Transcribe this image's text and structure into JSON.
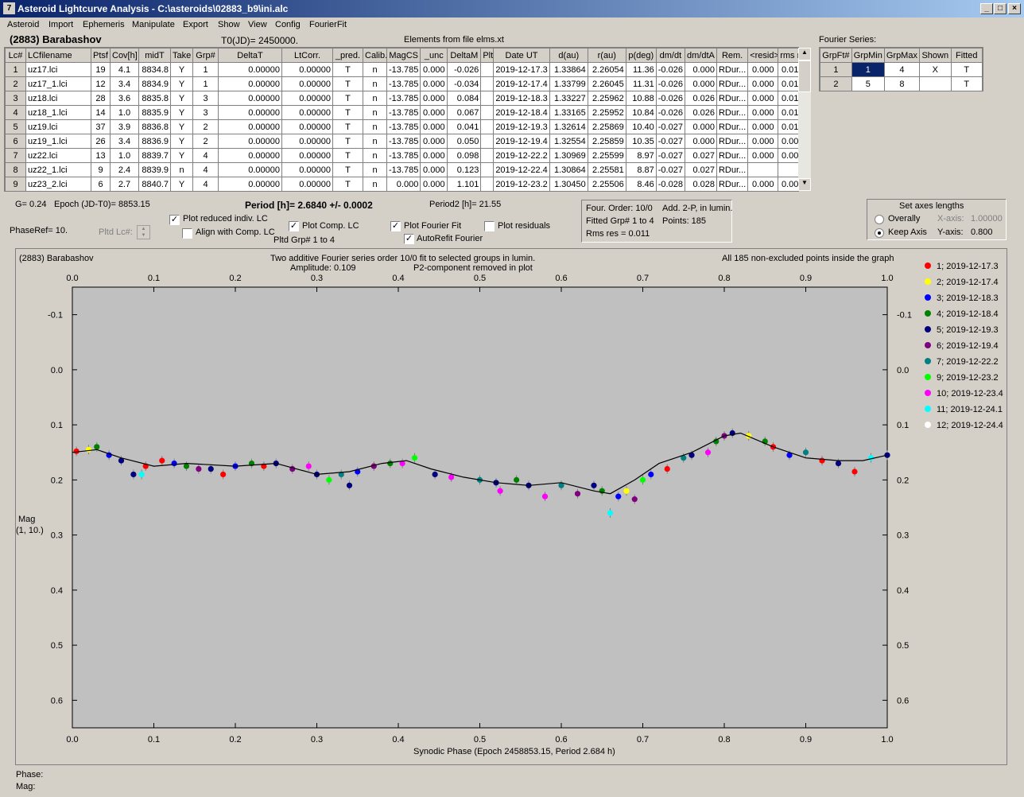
{
  "window": {
    "title": "Asteroid Lightcurve Analysis - C:\\asteroids\\02883_b9\\ini.alc"
  },
  "menu": [
    "Asteroid",
    "Import",
    "Ephemeris",
    "Manipulate",
    "Export",
    "Show",
    "View",
    "Config",
    "FourierFit"
  ],
  "header": {
    "asteroid": "(2883) Barabashov",
    "t0": "T0(JD)= 2450000.",
    "elements": "Elements from file elms.xt",
    "fourier_label": "Fourier Series:"
  },
  "lc_table": {
    "columns": [
      "Lc#",
      "LCfilename",
      "Ptsf",
      "Cov[h]",
      "midT",
      "Take",
      "Grp#",
      "DeltaT",
      "LtCorr.",
      "_pred.",
      "Calib.",
      "MagCS",
      "_unc",
      "DeltaM",
      "Plt",
      "Date UT",
      "d(au)",
      "r(au)",
      "p(deg)",
      "dm/dt",
      "dm/dtA",
      "Rem.",
      "<resid>",
      "rms res"
    ],
    "rows": [
      [
        "1",
        "uz17.lci",
        "19",
        "4.1",
        "8834.8",
        "Y",
        "1",
        "0.00000",
        "0.00000",
        "T",
        "n",
        "-13.785",
        "0.000",
        "-0.026",
        "",
        "2019-12-17.3",
        "1.33864",
        "2.26054",
        "11.36",
        "-0.026",
        "0.000",
        "RDur...",
        "0.000",
        "0.010"
      ],
      [
        "2",
        "uz17_1.lci",
        "12",
        "3.4",
        "8834.9",
        "Y",
        "1",
        "0.00000",
        "0.00000",
        "T",
        "n",
        "-13.785",
        "0.000",
        "-0.034",
        "",
        "2019-12-17.4",
        "1.33799",
        "2.26045",
        "11.31",
        "-0.026",
        "0.000",
        "RDur...",
        "0.000",
        "0.010"
      ],
      [
        "3",
        "uz18.lci",
        "28",
        "3.6",
        "8835.8",
        "Y",
        "3",
        "0.00000",
        "0.00000",
        "T",
        "n",
        "-13.785",
        "0.000",
        "0.084",
        "",
        "2019-12-18.3",
        "1.33227",
        "2.25962",
        "10.88",
        "-0.026",
        "0.026",
        "RDur...",
        "0.000",
        "0.010"
      ],
      [
        "4",
        "uz18_1.lci",
        "14",
        "1.0",
        "8835.9",
        "Y",
        "3",
        "0.00000",
        "0.00000",
        "T",
        "n",
        "-13.785",
        "0.000",
        "0.067",
        "",
        "2019-12-18.4",
        "1.33165",
        "2.25952",
        "10.84",
        "-0.026",
        "0.026",
        "RDur...",
        "0.000",
        "0.010"
      ],
      [
        "5",
        "uz19.lci",
        "37",
        "3.9",
        "8836.8",
        "Y",
        "2",
        "0.00000",
        "0.00000",
        "T",
        "n",
        "-13.785",
        "0.000",
        "0.041",
        "",
        "2019-12-19.3",
        "1.32614",
        "2.25869",
        "10.40",
        "-0.027",
        "0.000",
        "RDur...",
        "0.000",
        "0.012"
      ],
      [
        "6",
        "uz19_1.lci",
        "26",
        "3.4",
        "8836.9",
        "Y",
        "2",
        "0.00000",
        "0.00000",
        "T",
        "n",
        "-13.785",
        "0.000",
        "0.050",
        "",
        "2019-12-19.4",
        "1.32554",
        "2.25859",
        "10.35",
        "-0.027",
        "0.000",
        "RDur...",
        "0.000",
        "0.008"
      ],
      [
        "7",
        "uz22.lci",
        "13",
        "1.0",
        "8839.7",
        "Y",
        "4",
        "0.00000",
        "0.00000",
        "T",
        "n",
        "-13.785",
        "0.000",
        "0.098",
        "",
        "2019-12-22.2",
        "1.30969",
        "2.25599",
        "8.97",
        "-0.027",
        "0.027",
        "RDur...",
        "0.000",
        "0.008"
      ],
      [
        "8",
        "uz22_1.lci",
        "9",
        "2.4",
        "8839.9",
        "n",
        "4",
        "0.00000",
        "0.00000",
        "T",
        "n",
        "-13.785",
        "0.000",
        "0.123",
        "",
        "2019-12-22.4",
        "1.30864",
        "2.25581",
        "8.87",
        "-0.027",
        "0.027",
        "RDur...",
        "",
        ""
      ],
      [
        "9",
        "uz23_2.lci",
        "6",
        "2.7",
        "8840.7",
        "Y",
        "4",
        "0.00000",
        "0.00000",
        "T",
        "n",
        "0.000",
        "0.000",
        "1.101",
        "",
        "2019-12-23.2",
        "1.30450",
        "2.25506",
        "8.46",
        "-0.028",
        "0.028",
        "RDur...",
        "0.000",
        "0.006"
      ]
    ]
  },
  "fourier_table": {
    "columns": [
      "GrpFt#",
      "GrpMin",
      "GrpMax",
      "Shown",
      "Fitted"
    ],
    "rows": [
      [
        "1",
        "1",
        "4",
        "X",
        "T"
      ],
      [
        "2",
        "5",
        "8",
        "",
        "T"
      ]
    ]
  },
  "controls": {
    "g": "G= 0.24",
    "epoch": "Epoch (JD-T0)= 8853.15",
    "period": "Period [h]= 2.6840 +/- 0.0002",
    "period2": "Period2 [h]= 21.55",
    "phaseref": "PhaseRef= 10.",
    "pltd_lc": "Pltd Lc#:",
    "cb_reduced": "Plot reduced indiv. LC",
    "cb_align": "Align with Comp. LC",
    "cb_comp": "Plot Comp. LC",
    "pltd_grp": "Pltd Grp#  1   to   4",
    "cb_fourier": "Plot Fourier Fit",
    "cb_resid": "Plot residuals",
    "cb_autorefit": "AutoRefit Fourier",
    "info1": "Four. Order: 10/0",
    "info2": "Add. 2-P, in lumin.",
    "info3": "Fitted Grp# 1 to 4",
    "info4": "Points: 185",
    "info5": "Rms res      = 0.011",
    "axes_title": "Set axes lengths",
    "overally": "Overally",
    "keep_axis": "Keep Axis",
    "xaxis_label": "X-axis:",
    "xaxis_val": "1.00000",
    "yaxis_label": "Y-axis:",
    "yaxis_val": "0.800"
  },
  "plot": {
    "t_left": "(2883) Barabashov",
    "t_center1": "Two additive Fourier series order 10/0 fit to selected groups in lumin.",
    "t_center2a": "Amplitude: 0.109",
    "t_center2b": "P2-component removed in plot",
    "t_right": "All 185 non-excluded points inside the graph",
    "ylabel1": "Mag",
    "ylabel2": "(1, 10.)",
    "xlabel": "Synodic Phase (Epoch 2458853.15, Period 2.684 h)"
  },
  "footer": {
    "phase": "Phase:",
    "mag": "Mag:"
  },
  "chart_data": {
    "type": "scatter",
    "xlim": [
      0,
      1
    ],
    "ylim": [
      0.65,
      -0.15
    ],
    "y_inverted": true,
    "xticks": [
      "0.0",
      "0.1",
      "0.2",
      "0.3",
      "0.4",
      "0.5",
      "0.6",
      "0.7",
      "0.8",
      "0.9",
      "1.0"
    ],
    "yticks": [
      "-0.1",
      "0.0",
      "0.1",
      "0.2",
      "0.3",
      "0.4",
      "0.5",
      "0.6"
    ],
    "legend": [
      {
        "name": "1; 2019-12-17.3",
        "color": "#ff0000"
      },
      {
        "name": "2; 2019-12-17.4",
        "color": "#ffff00"
      },
      {
        "name": "3; 2019-12-18.3",
        "color": "#0000ff"
      },
      {
        "name": "4; 2019-12-18.4",
        "color": "#008000"
      },
      {
        "name": "5; 2019-12-19.3",
        "color": "#000080"
      },
      {
        "name": "6; 2019-12-19.4",
        "color": "#800080"
      },
      {
        "name": "7; 2019-12-22.2",
        "color": "#008080"
      },
      {
        "name": "9; 2019-12-23.2",
        "color": "#00ff00"
      },
      {
        "name": "10; 2019-12-23.4",
        "color": "#ff00ff"
      },
      {
        "name": "11; 2019-12-24.1",
        "color": "#00ffff"
      },
      {
        "name": "12; 2019-12-24.4",
        "color": "#ffffff"
      }
    ],
    "fit_curve": {
      "x": [
        0,
        0.03,
        0.06,
        0.1,
        0.14,
        0.2,
        0.25,
        0.3,
        0.34,
        0.38,
        0.41,
        0.44,
        0.48,
        0.52,
        0.56,
        0.6,
        0.64,
        0.66,
        0.69,
        0.72,
        0.76,
        0.8,
        0.82,
        0.86,
        0.9,
        0.94,
        0.97,
        1.0
      ],
      "y": [
        0.15,
        0.145,
        0.16,
        0.175,
        0.17,
        0.175,
        0.17,
        0.19,
        0.185,
        0.17,
        0.165,
        0.18,
        0.195,
        0.205,
        0.21,
        0.205,
        0.22,
        0.225,
        0.2,
        0.17,
        0.15,
        0.12,
        0.115,
        0.14,
        0.16,
        0.165,
        0.165,
        0.155
      ]
    },
    "points": [
      [
        0.005,
        0.148,
        "#ff0000"
      ],
      [
        0.02,
        0.145,
        "#ffff00"
      ],
      [
        0.03,
        0.14,
        "#008000"
      ],
      [
        0.045,
        0.155,
        "#0000ff"
      ],
      [
        0.06,
        0.165,
        "#000080"
      ],
      [
        0.075,
        0.19,
        "#000080"
      ],
      [
        0.085,
        0.19,
        "#00ffff"
      ],
      [
        0.09,
        0.175,
        "#ff0000"
      ],
      [
        0.11,
        0.165,
        "#ff0000"
      ],
      [
        0.125,
        0.17,
        "#0000ff"
      ],
      [
        0.14,
        0.175,
        "#008000"
      ],
      [
        0.155,
        0.18,
        "#800080"
      ],
      [
        0.17,
        0.18,
        "#000080"
      ],
      [
        0.185,
        0.19,
        "#ff0000"
      ],
      [
        0.2,
        0.175,
        "#0000ff"
      ],
      [
        0.22,
        0.17,
        "#008000"
      ],
      [
        0.235,
        0.175,
        "#ff0000"
      ],
      [
        0.25,
        0.17,
        "#000080"
      ],
      [
        0.27,
        0.18,
        "#800080"
      ],
      [
        0.29,
        0.175,
        "#ff00ff"
      ],
      [
        0.3,
        0.19,
        "#000080"
      ],
      [
        0.315,
        0.2,
        "#00ff00"
      ],
      [
        0.33,
        0.19,
        "#008080"
      ],
      [
        0.34,
        0.21,
        "#000080"
      ],
      [
        0.35,
        0.185,
        "#0000ff"
      ],
      [
        0.37,
        0.175,
        "#800080"
      ],
      [
        0.39,
        0.17,
        "#008000"
      ],
      [
        0.405,
        0.17,
        "#ff00ff"
      ],
      [
        0.42,
        0.16,
        "#00ff00"
      ],
      [
        0.445,
        0.19,
        "#000080"
      ],
      [
        0.465,
        0.195,
        "#ff00ff"
      ],
      [
        0.5,
        0.2,
        "#008080"
      ],
      [
        0.52,
        0.205,
        "#000080"
      ],
      [
        0.525,
        0.22,
        "#ff00ff"
      ],
      [
        0.545,
        0.2,
        "#008000"
      ],
      [
        0.56,
        0.21,
        "#000080"
      ],
      [
        0.58,
        0.23,
        "#ff00ff"
      ],
      [
        0.6,
        0.21,
        "#008080"
      ],
      [
        0.62,
        0.225,
        "#800080"
      ],
      [
        0.64,
        0.21,
        "#000080"
      ],
      [
        0.65,
        0.22,
        "#008000"
      ],
      [
        0.66,
        0.26,
        "#00ffff"
      ],
      [
        0.67,
        0.23,
        "#0000ff"
      ],
      [
        0.68,
        0.22,
        "#ffff00"
      ],
      [
        0.69,
        0.235,
        "#800080"
      ],
      [
        0.7,
        0.2,
        "#00ff00"
      ],
      [
        0.71,
        0.19,
        "#0000ff"
      ],
      [
        0.73,
        0.18,
        "#ff0000"
      ],
      [
        0.75,
        0.16,
        "#008080"
      ],
      [
        0.76,
        0.155,
        "#000080"
      ],
      [
        0.78,
        0.15,
        "#ff00ff"
      ],
      [
        0.79,
        0.13,
        "#008000"
      ],
      [
        0.8,
        0.12,
        "#800080"
      ],
      [
        0.81,
        0.115,
        "#000080"
      ],
      [
        0.83,
        0.12,
        "#ffff00"
      ],
      [
        0.85,
        0.13,
        "#008000"
      ],
      [
        0.86,
        0.14,
        "#ff0000"
      ],
      [
        0.88,
        0.155,
        "#0000ff"
      ],
      [
        0.9,
        0.15,
        "#008080"
      ],
      [
        0.92,
        0.165,
        "#ff0000"
      ],
      [
        0.94,
        0.17,
        "#000080"
      ],
      [
        0.96,
        0.185,
        "#ff0000"
      ],
      [
        0.98,
        0.16,
        "#00ffff"
      ],
      [
        1.0,
        0.155,
        "#000080"
      ]
    ]
  }
}
